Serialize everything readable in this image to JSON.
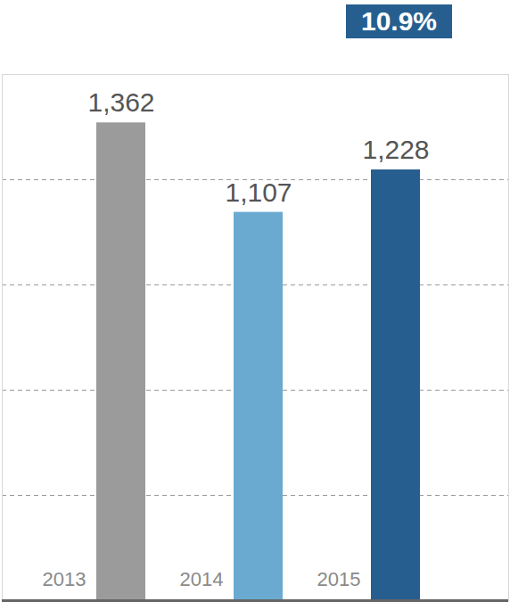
{
  "chart_data": {
    "type": "bar",
    "categories": [
      "2013",
      "2014",
      "2015"
    ],
    "values": [
      1362,
      1107,
      1228
    ],
    "value_labels": [
      "1,362",
      "1,107",
      "1,228"
    ],
    "colors": [
      "#9b9b9b",
      "#6aaad0",
      "#265f8f"
    ],
    "ylim": [
      0,
      1500
    ],
    "yticks": [
      0,
      300,
      600,
      900,
      1200
    ],
    "grid": true,
    "data_labels": true,
    "tick_labels": "x",
    "annotations": [
      "10.9%"
    ]
  }
}
